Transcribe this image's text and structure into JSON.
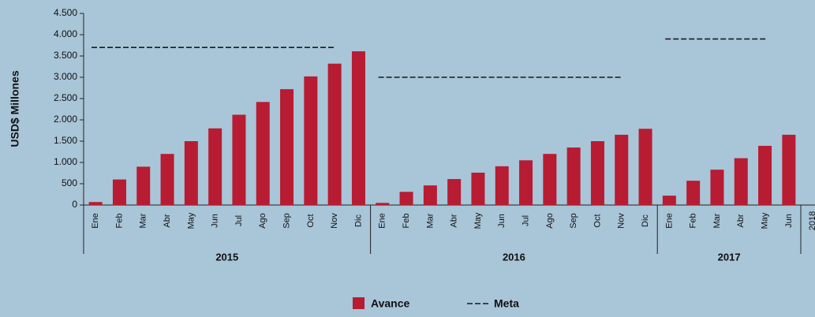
{
  "chart_data": {
    "type": "bar",
    "y_label": "USD$ Millones",
    "ylim": [
      0,
      4500
    ],
    "yticks": [
      0,
      500,
      {
        "value": 1000,
        "label": "1.000"
      },
      {
        "value": 1500,
        "label": "1.500"
      },
      {
        "value": 2000,
        "label": "2.000"
      },
      {
        "value": 2500,
        "label": "2.500"
      },
      {
        "value": 3000,
        "label": "3.000"
      },
      {
        "value": 3500,
        "label": "3.500"
      },
      {
        "value": 4000,
        "label": "4.000"
      },
      {
        "value": 4500,
        "label": "4.500"
      }
    ],
    "series": [
      {
        "name": "Avance",
        "color": "#b71c32"
      },
      {
        "name": "Meta",
        "color": "#1a1a1a"
      }
    ],
    "groups": [
      {
        "label": "2015",
        "meta": 3700,
        "categories": [
          "Ene",
          "Feb",
          "Mar",
          "Abr",
          "May",
          "Jun",
          "Jul",
          "Ago",
          "Sep",
          "Oct",
          "Nov",
          "Dic"
        ],
        "values": [
          70,
          600,
          900,
          1200,
          1500,
          1800,
          2120,
          2420,
          2720,
          3020,
          3320,
          3610
        ]
      },
      {
        "label": "2016",
        "meta": 3000,
        "categories": [
          "Ene",
          "Feb",
          "Mar",
          "Abr",
          "May",
          "Jun",
          "Jul",
          "Ago",
          "Sep",
          "Oct",
          "Nov",
          "Dic"
        ],
        "values": [
          50,
          310,
          460,
          610,
          760,
          910,
          1050,
          1200,
          1350,
          1500,
          1650,
          1790
        ]
      },
      {
        "label": "2017",
        "meta": 3900,
        "categories": [
          "Ene",
          "Feb",
          "Mar",
          "Abr",
          "May",
          "Jun"
        ],
        "values": [
          220,
          570,
          830,
          1100,
          1390,
          1650
        ]
      },
      {
        "categories": [
          "2018"
        ],
        "values": [
          null
        ]
      }
    ]
  }
}
